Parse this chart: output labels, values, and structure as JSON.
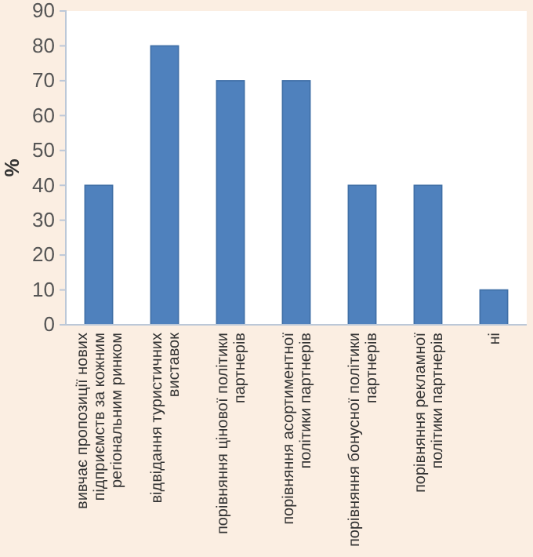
{
  "chart_data": {
    "type": "bar",
    "ylabel": "%",
    "categories": [
      "вивчає пропозиції нових підприємств за кожним регіональним ринком",
      "відвідання туристичних виставок",
      "порівняння цінової політики партнерів",
      "порівняння асортиментної політики партнерів",
      "порівняння бонусної політики партнерів",
      "порівняння рекламної політики партнерів",
      "ні"
    ],
    "values": [
      40,
      80,
      70,
      70,
      40,
      40,
      10
    ],
    "color": "#4f81bd",
    "ylim": [
      0,
      90
    ],
    "yticks": [
      0,
      10,
      20,
      30,
      40,
      50,
      60,
      70,
      80,
      90
    ],
    "grid": false
  }
}
